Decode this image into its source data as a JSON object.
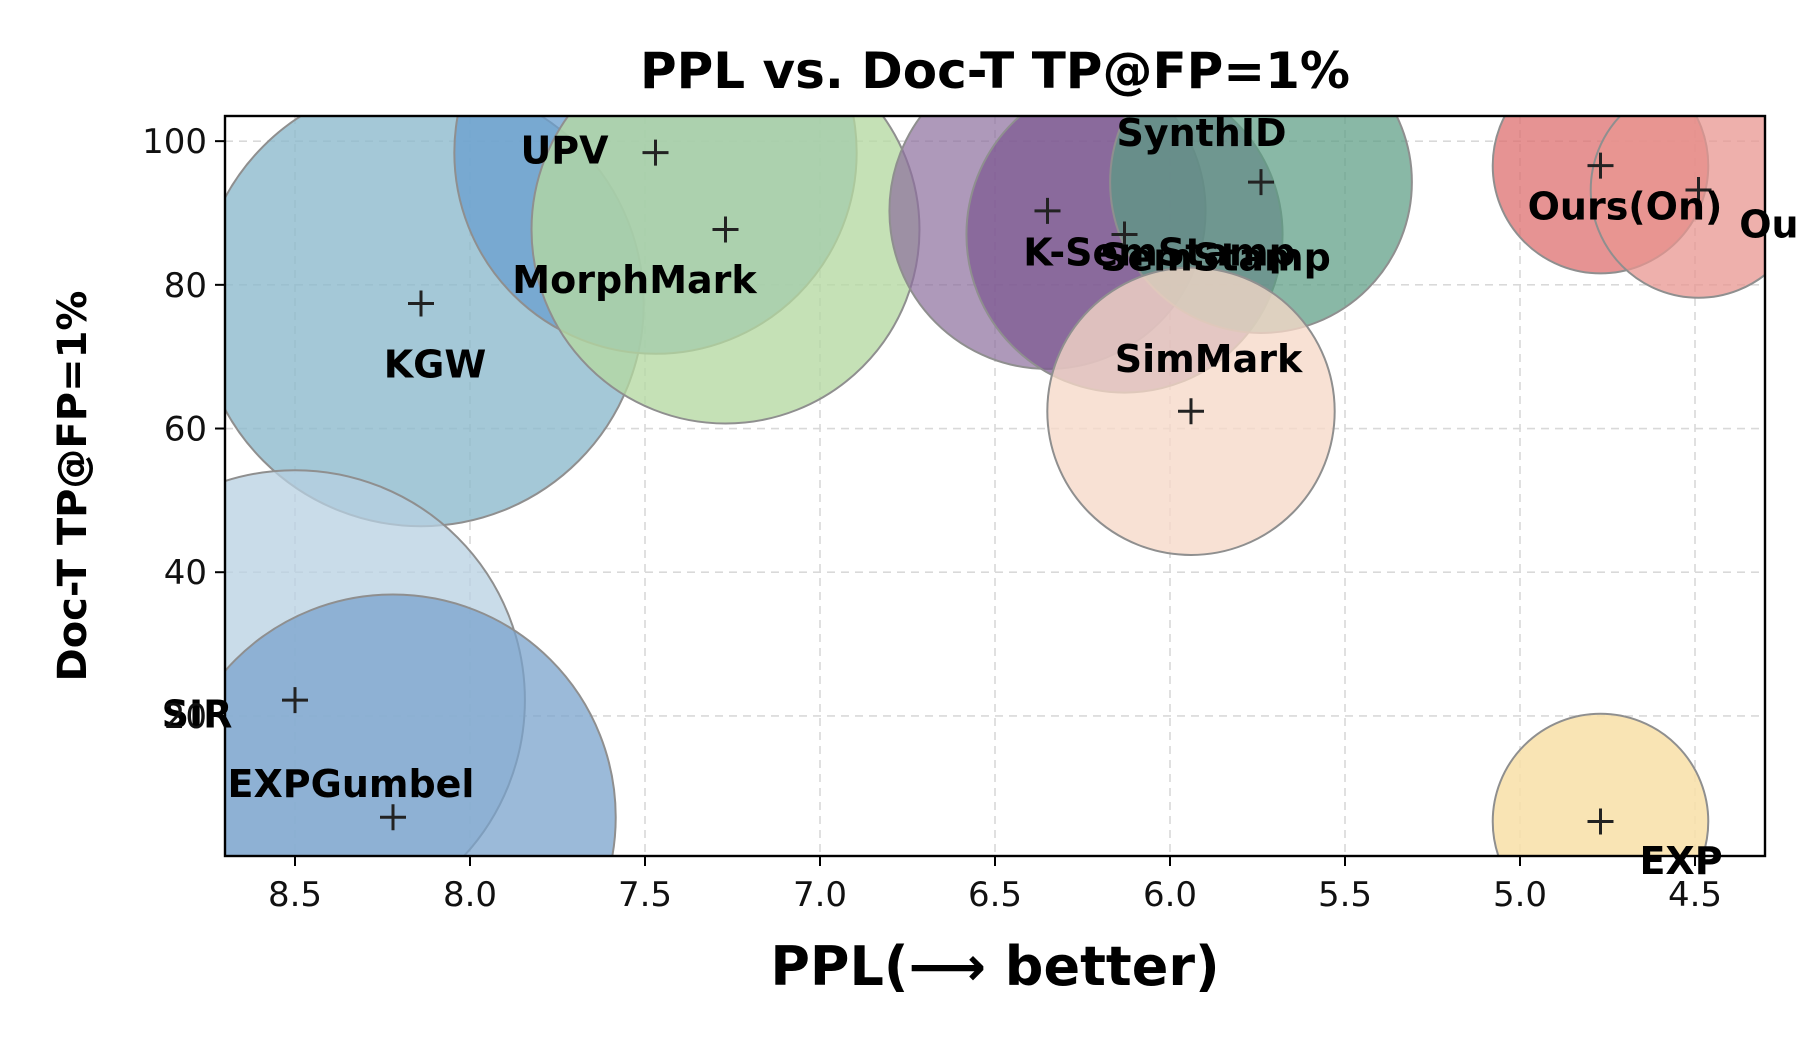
{
  "chart_data": {
    "type": "scatter",
    "title": "PPL vs. Doc-T TP@FP=1%",
    "xlabel": "PPL(⟶ better)",
    "ylabel": "Doc-T TP@FP=1%",
    "xlim": [
      8.7,
      4.3
    ],
    "ylim": [
      0.5,
      103.5
    ],
    "x_reversed": true,
    "grid": true,
    "xticks": [
      "8.5",
      "8.0",
      "7.5",
      "7.0",
      "6.5",
      "6.0",
      "5.5",
      "5.0",
      "4.5"
    ],
    "yticks": [
      "20",
      "40",
      "60",
      "80",
      "100"
    ],
    "points": [
      {
        "label": "KGW",
        "x": 8.14,
        "y": 77.4,
        "size": 31,
        "color": "#8ab8cc",
        "opacity": 0.78,
        "label_dx": 0.04,
        "label_dy": -8.5
      },
      {
        "label": "SIR",
        "x": 8.5,
        "y": 22.2,
        "size": 32,
        "color": "#b7d0e1",
        "opacity": 0.75,
        "label_dx": -0.28,
        "label_dy": -2
      },
      {
        "label": "EXPGumbel",
        "x": 8.22,
        "y": 5.9,
        "size": 31,
        "color": "#7aa3cc",
        "opacity": 0.75,
        "label_dx": -0.12,
        "label_dy": 4.6
      },
      {
        "label": "UPV",
        "x": 7.47,
        "y": 98.4,
        "size": 28,
        "color": "#6a9fcf",
        "opacity": 0.75,
        "label_dx": -0.26,
        "label_dy": 0.3
      },
      {
        "label": "MorphMark",
        "x": 7.27,
        "y": 87.7,
        "size": 27,
        "color": "#b5d9a1",
        "opacity": 0.78,
        "label_dx": -0.26,
        "label_dy": -7
      },
      {
        "label": "K-SemStamp",
        "x": 6.35,
        "y": 90.3,
        "size": 22,
        "color": "#8c6d9c",
        "opacity": 0.7,
        "label_dx": 0.32,
        "label_dy": -5.8
      },
      {
        "label": "SemStamp",
        "x": 6.13,
        "y": 87.0,
        "size": 22,
        "color": "#7a5590",
        "opacity": 0.7,
        "label_dx": 0.26,
        "label_dy": -3.2
      },
      {
        "label": "SynthID",
        "x": 5.74,
        "y": 94.3,
        "size": 21,
        "color": "#5c9c84",
        "opacity": 0.72,
        "label_dx": -0.17,
        "label_dy": 6.8
      },
      {
        "label": "SimMark",
        "x": 5.94,
        "y": 62.4,
        "size": 20,
        "color": "#f6d8c8",
        "opacity": 0.78,
        "label_dx": 0.05,
        "label_dy": 7.3
      },
      {
        "label": "Ours(On)",
        "x": 4.77,
        "y": 96.6,
        "size": 15,
        "color": "#de6f6f",
        "opacity": 0.75,
        "label_dx": 0.07,
        "label_dy": -5.7
      },
      {
        "label": "Ours(Off)",
        "x": 4.49,
        "y": 93.2,
        "size": 15,
        "color": "#e89690",
        "opacity": 0.75,
        "label_dx": 0.4,
        "label_dy": -4.8
      },
      {
        "label": "EXP",
        "x": 4.77,
        "y": 5.3,
        "size": 15,
        "color": "#f8dfa7",
        "opacity": 0.85,
        "label_dx": 0.23,
        "label_dy": -5.5
      }
    ]
  }
}
